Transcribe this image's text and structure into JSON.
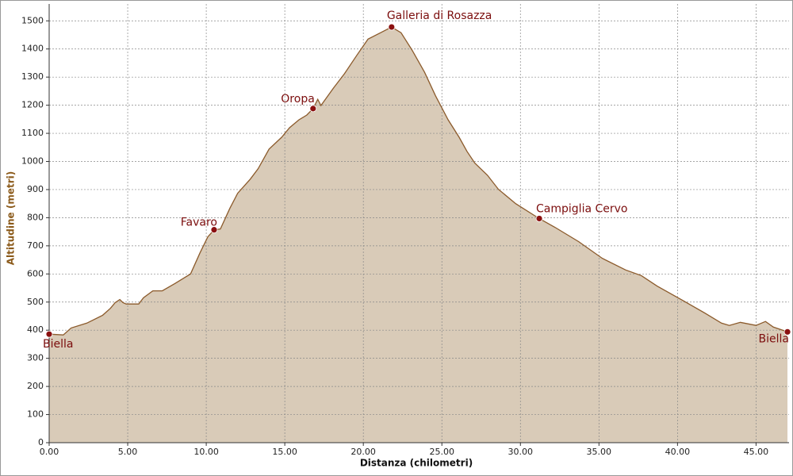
{
  "chart_data": {
    "type": "area",
    "xlabel": "Distanza (chilometri)",
    "ylabel": "Altitudine (metri)",
    "xlim": [
      0,
      47.1
    ],
    "ylim": [
      0,
      1560
    ],
    "xticks": [
      {
        "value": 0,
        "label": "0.00"
      },
      {
        "value": 5,
        "label": "5.00"
      },
      {
        "value": 10,
        "label": "10.00"
      },
      {
        "value": 15,
        "label": "15.00"
      },
      {
        "value": 20,
        "label": "20.00"
      },
      {
        "value": 25,
        "label": "25.00"
      },
      {
        "value": 30,
        "label": "30.00"
      },
      {
        "value": 35,
        "label": "35.00"
      },
      {
        "value": 40,
        "label": "40.00"
      },
      {
        "value": 45,
        "label": "45.00"
      }
    ],
    "yticks": [
      0,
      100,
      200,
      300,
      400,
      500,
      600,
      700,
      800,
      900,
      1000,
      1100,
      1200,
      1300,
      1400,
      1500
    ],
    "grid": true,
    "x": [
      0,
      0.9,
      1.4,
      2.4,
      3.4,
      3.9,
      4.2,
      4.5,
      4.7,
      4.9,
      5.7,
      6.0,
      6.6,
      7.2,
      8.0,
      9.0,
      9.6,
      10.1,
      10.5,
      10.9,
      11.5,
      12.0,
      12.8,
      13.3,
      14.0,
      14.8,
      15.3,
      15.9,
      16.4,
      16.8,
      17.1,
      17.3,
      18.1,
      18.8,
      19.6,
      20.3,
      21.1,
      21.8,
      22.4,
      23.1,
      23.9,
      24.6,
      25.4,
      26.1,
      26.6,
      27.1,
      27.9,
      28.6,
      29.7,
      31.2,
      32.2,
      33.7,
      35.2,
      36.7,
      37.7,
      38.7,
      40.3,
      41.8,
      42.8,
      43.3,
      44.0,
      45.0,
      45.6,
      46.1,
      47.0
    ],
    "series": [
      {
        "color": "#8b5a2b",
        "fill": "#d9cbb8",
        "values": [
          386,
          383,
          408,
          425,
          453,
          478,
          498,
          509,
          498,
          493,
          493,
          515,
          540,
          540,
          566,
          600,
          675,
          732,
          757,
          760,
          833,
          887,
          937,
          974,
          1044,
          1086,
          1120,
          1148,
          1165,
          1188,
          1221,
          1199,
          1261,
          1312,
          1379,
          1435,
          1458,
          1478,
          1458,
          1396,
          1317,
          1233,
          1148,
          1086,
          1036,
          994,
          951,
          901,
          850,
          797,
          766,
          715,
          656,
          614,
          594,
          557,
          507,
          459,
          425,
          417,
          428,
          417,
          431,
          411,
          394
        ]
      }
    ],
    "annotations": [
      {
        "text": "Biella",
        "x": 0,
        "y": 386
      },
      {
        "text": "Favaro",
        "x": 10.5,
        "y": 757
      },
      {
        "text": "Oropa",
        "x": 16.8,
        "y": 1188
      },
      {
        "text": "Galleria di Rosazza",
        "x": 21.8,
        "y": 1478
      },
      {
        "text": "Campiglia Cervo",
        "x": 31.2,
        "y": 797
      },
      {
        "text": "Biella",
        "x": 47.0,
        "y": 394
      }
    ]
  }
}
